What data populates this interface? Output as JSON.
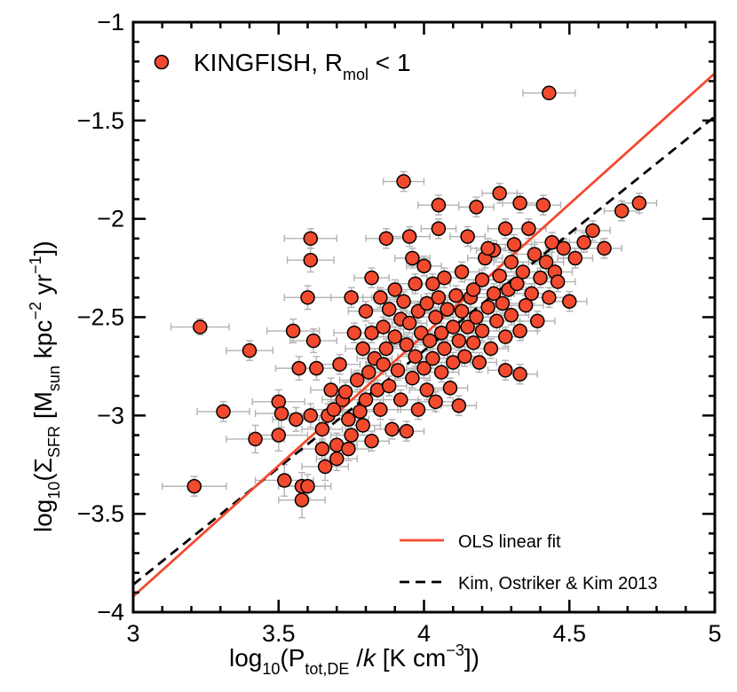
{
  "chart_data": {
    "type": "scatter",
    "xlabel": "log10(P_tot,DE /k [K cm^-3])",
    "ylabel": "log10(Σ_SFR [M_sun kpc^-2 yr^-1])",
    "xlim": [
      3,
      5
    ],
    "ylim": [
      -4,
      -1
    ],
    "x_ticks": [
      "3",
      "3.5",
      "4",
      "4.5",
      "5"
    ],
    "y_ticks": [
      "−1",
      "−1.5",
      "−2",
      "−2.5",
      "−3",
      "−3.5",
      "−4"
    ],
    "x_tick_values": [
      3,
      3.5,
      4,
      4.5,
      5
    ],
    "y_tick_values": [
      -1,
      -1.5,
      -2,
      -2.5,
      -3,
      -3.5,
      -4
    ],
    "label_parts": {
      "x_log": "log",
      "x_log_sub": "10",
      "x_open": "(P",
      "x_sub": "tot,DE",
      "x_slash": " /",
      "x_k": "k",
      "x_units": " [K cm",
      "x_exp": "−3",
      "x_close": "])",
      "y_log": "log",
      "y_log_sub": "10",
      "y_open": "(Σ",
      "y_sub": "SFR",
      "y_units": " [M",
      "y_sun": "sun",
      "y_kpc": " kpc",
      "y_exp1": "−2",
      "y_yr": " yr",
      "y_exp2": "−1",
      "y_close": "])"
    },
    "legend": {
      "points_label": "KINGFISH, R",
      "points_sub": "mol",
      "points_tail": " < 1",
      "ols_label": "OLS linear fit",
      "kok_label": "Kim, Ostriker & Kim 2013"
    },
    "colors": {
      "marker": "#f24a2e",
      "errorbar": "#b3b3b3",
      "ols": "#f24a2e",
      "kok": "#000000"
    },
    "ols_fit": {
      "x": [
        3,
        5
      ],
      "y": [
        -3.92,
        -1.26
      ]
    },
    "kok_fit": {
      "x": [
        3,
        5
      ],
      "y": [
        -3.86,
        -1.48
      ]
    },
    "series": [
      {
        "name": "KINGFISH, Rmol < 1",
        "points": [
          [
            4.43,
            -1.36,
            0.09,
            0.03
          ],
          [
            3.21,
            -3.36,
            0.11,
            0.05
          ],
          [
            3.23,
            -2.55,
            0.1,
            0.04
          ],
          [
            3.31,
            -2.98,
            0.09,
            0.05
          ],
          [
            3.4,
            -2.67,
            0.08,
            0.05
          ],
          [
            3.42,
            -3.12,
            0.1,
            0.07
          ],
          [
            3.5,
            -2.93,
            0.09,
            0.06
          ],
          [
            3.5,
            -3.1,
            0.1,
            0.08
          ],
          [
            3.51,
            -2.99,
            0.09,
            0.07
          ],
          [
            3.52,
            -3.33,
            0.1,
            0.08
          ],
          [
            3.55,
            -2.57,
            0.09,
            0.06
          ],
          [
            3.56,
            -3.02,
            0.08,
            0.06
          ],
          [
            3.57,
            -2.76,
            0.08,
            0.06
          ],
          [
            3.58,
            -3.36,
            0.08,
            0.07
          ],
          [
            3.58,
            -3.43,
            0.08,
            0.09
          ],
          [
            3.6,
            -2.4,
            0.08,
            0.06
          ],
          [
            3.6,
            -3.36,
            0.08,
            0.06
          ],
          [
            3.61,
            -2.1,
            0.09,
            0.05
          ],
          [
            3.61,
            -2.21,
            0.08,
            0.06
          ],
          [
            3.61,
            -3.0,
            0.08,
            0.06
          ],
          [
            3.62,
            -2.62,
            0.08,
            0.06
          ],
          [
            3.63,
            -2.76,
            0.07,
            0.06
          ],
          [
            3.65,
            -3.07,
            0.07,
            0.06
          ],
          [
            3.65,
            -3.17,
            0.07,
            0.05
          ],
          [
            3.66,
            -3.26,
            0.08,
            0.07
          ],
          [
            3.67,
            -3.0,
            0.07,
            0.06
          ],
          [
            3.68,
            -2.87,
            0.07,
            0.06
          ],
          [
            3.69,
            -2.97,
            0.07,
            0.05
          ],
          [
            3.7,
            -3.15,
            0.07,
            0.06
          ],
          [
            3.7,
            -3.22,
            0.07,
            0.06
          ],
          [
            3.71,
            -2.74,
            0.07,
            0.05
          ],
          [
            3.72,
            -2.92,
            0.07,
            0.06
          ],
          [
            3.73,
            -2.88,
            0.07,
            0.05
          ],
          [
            3.74,
            -3.02,
            0.07,
            0.05
          ],
          [
            3.74,
            -3.17,
            0.07,
            0.06
          ],
          [
            3.75,
            -2.4,
            0.07,
            0.05
          ],
          [
            3.75,
            -3.1,
            0.07,
            0.05
          ],
          [
            3.76,
            -2.58,
            0.07,
            0.05
          ],
          [
            3.77,
            -2.82,
            0.06,
            0.05
          ],
          [
            3.78,
            -2.98,
            0.06,
            0.05
          ],
          [
            3.79,
            -2.66,
            0.06,
            0.05
          ],
          [
            3.79,
            -3.05,
            0.06,
            0.05
          ],
          [
            3.8,
            -2.47,
            0.06,
            0.05
          ],
          [
            3.8,
            -2.92,
            0.06,
            0.05
          ],
          [
            3.81,
            -2.78,
            0.06,
            0.05
          ],
          [
            3.82,
            -2.58,
            0.06,
            0.05
          ],
          [
            3.82,
            -3.13,
            0.06,
            0.05
          ],
          [
            3.83,
            -2.71,
            0.06,
            0.05
          ],
          [
            3.84,
            -2.87,
            0.06,
            0.05
          ],
          [
            3.85,
            -2.4,
            0.06,
            0.05
          ],
          [
            3.85,
            -2.97,
            0.06,
            0.05
          ],
          [
            3.86,
            -2.55,
            0.06,
            0.05
          ],
          [
            3.86,
            -2.74,
            0.06,
            0.05
          ],
          [
            3.87,
            -2.1,
            0.07,
            0.05
          ],
          [
            3.87,
            -2.66,
            0.06,
            0.05
          ],
          [
            3.88,
            -2.46,
            0.06,
            0.05
          ],
          [
            3.88,
            -2.85,
            0.06,
            0.05
          ],
          [
            3.89,
            -3.07,
            0.06,
            0.05
          ],
          [
            3.9,
            -2.36,
            0.06,
            0.05
          ],
          [
            3.9,
            -2.6,
            0.06,
            0.05
          ],
          [
            3.91,
            -2.77,
            0.06,
            0.05
          ],
          [
            3.92,
            -2.51,
            0.06,
            0.05
          ],
          [
            3.92,
            -2.92,
            0.06,
            0.05
          ],
          [
            3.93,
            -1.81,
            0.07,
            0.05
          ],
          [
            3.93,
            -2.42,
            0.06,
            0.05
          ],
          [
            3.94,
            -2.64,
            0.06,
            0.05
          ],
          [
            3.94,
            -3.08,
            0.06,
            0.05
          ],
          [
            3.95,
            -2.09,
            0.07,
            0.05
          ],
          [
            3.95,
            -2.53,
            0.06,
            0.05
          ],
          [
            3.96,
            -2.81,
            0.06,
            0.05
          ],
          [
            3.97,
            -2.33,
            0.06,
            0.05
          ],
          [
            3.97,
            -2.7,
            0.06,
            0.05
          ],
          [
            3.98,
            -2.47,
            0.06,
            0.05
          ],
          [
            3.98,
            -2.97,
            0.06,
            0.05
          ],
          [
            3.99,
            -2.58,
            0.06,
            0.05
          ],
          [
            4.0,
            -2.24,
            0.06,
            0.05
          ],
          [
            4.0,
            -2.76,
            0.06,
            0.05
          ],
          [
            4.01,
            -2.43,
            0.06,
            0.05
          ],
          [
            4.01,
            -2.87,
            0.06,
            0.05
          ],
          [
            4.02,
            -2.62,
            0.06,
            0.05
          ],
          [
            4.03,
            -2.33,
            0.06,
            0.05
          ],
          [
            4.03,
            -2.71,
            0.06,
            0.05
          ],
          [
            4.04,
            -2.5,
            0.06,
            0.05
          ],
          [
            4.04,
            -2.93,
            0.06,
            0.05
          ],
          [
            4.05,
            -1.93,
            0.07,
            0.05
          ],
          [
            4.05,
            -2.4,
            0.06,
            0.05
          ],
          [
            4.06,
            -2.58,
            0.06,
            0.05
          ],
          [
            4.06,
            -2.78,
            0.06,
            0.05
          ],
          [
            4.07,
            -2.3,
            0.06,
            0.05
          ],
          [
            4.07,
            -2.66,
            0.06,
            0.05
          ],
          [
            4.08,
            -2.46,
            0.06,
            0.05
          ],
          [
            4.09,
            -2.86,
            0.06,
            0.05
          ],
          [
            4.1,
            -2.55,
            0.06,
            0.05
          ],
          [
            4.1,
            -2.73,
            0.06,
            0.05
          ],
          [
            4.11,
            -2.39,
            0.06,
            0.05
          ],
          [
            4.12,
            -2.62,
            0.06,
            0.05
          ],
          [
            4.13,
            -2.27,
            0.06,
            0.05
          ],
          [
            4.13,
            -2.47,
            0.06,
            0.05
          ],
          [
            4.14,
            -2.7,
            0.06,
            0.05
          ],
          [
            4.15,
            -2.09,
            0.06,
            0.05
          ],
          [
            4.15,
            -2.55,
            0.06,
            0.05
          ],
          [
            4.16,
            -2.4,
            0.06,
            0.05
          ],
          [
            4.17,
            -2.36,
            0.06,
            0.05
          ],
          [
            4.17,
            -2.63,
            0.06,
            0.05
          ],
          [
            4.18,
            -1.94,
            0.06,
            0.05
          ],
          [
            4.18,
            -2.5,
            0.06,
            0.05
          ],
          [
            4.19,
            -2.73,
            0.06,
            0.05
          ],
          [
            4.2,
            -2.31,
            0.06,
            0.05
          ],
          [
            4.2,
            -2.57,
            0.06,
            0.05
          ],
          [
            4.21,
            -2.2,
            0.06,
            0.05
          ],
          [
            4.22,
            -2.45,
            0.06,
            0.05
          ],
          [
            4.23,
            -2.66,
            0.06,
            0.05
          ],
          [
            4.24,
            -2.16,
            0.06,
            0.05
          ],
          [
            4.24,
            -2.38,
            0.06,
            0.05
          ],
          [
            4.25,
            -2.52,
            0.06,
            0.05
          ],
          [
            4.26,
            -1.87,
            0.06,
            0.05
          ],
          [
            4.26,
            -2.29,
            0.06,
            0.05
          ],
          [
            4.27,
            -2.43,
            0.06,
            0.05
          ],
          [
            4.28,
            -2.05,
            0.06,
            0.05
          ],
          [
            4.28,
            -2.6,
            0.06,
            0.05
          ],
          [
            4.29,
            -2.36,
            0.06,
            0.05
          ],
          [
            4.3,
            -2.22,
            0.06,
            0.05
          ],
          [
            4.3,
            -2.49,
            0.06,
            0.05
          ],
          [
            4.31,
            -2.13,
            0.06,
            0.05
          ],
          [
            4.32,
            -2.33,
            0.06,
            0.05
          ],
          [
            4.33,
            -1.92,
            0.06,
            0.05
          ],
          [
            4.33,
            -2.57,
            0.06,
            0.05
          ],
          [
            4.34,
            -2.27,
            0.06,
            0.05
          ],
          [
            4.35,
            -2.44,
            0.06,
            0.05
          ],
          [
            4.36,
            -2.05,
            0.06,
            0.05
          ],
          [
            4.37,
            -2.38,
            0.06,
            0.05
          ],
          [
            4.38,
            -2.18,
            0.06,
            0.05
          ],
          [
            4.39,
            -2.52,
            0.06,
            0.05
          ],
          [
            4.4,
            -2.3,
            0.06,
            0.05
          ],
          [
            4.41,
            -1.93,
            0.06,
            0.05
          ],
          [
            4.42,
            -2.22,
            0.06,
            0.05
          ],
          [
            4.43,
            -2.4,
            0.06,
            0.05
          ],
          [
            4.44,
            -2.12,
            0.06,
            0.05
          ],
          [
            4.45,
            -2.27,
            0.06,
            0.05
          ],
          [
            4.46,
            -2.32,
            0.06,
            0.05
          ],
          [
            4.48,
            -2.15,
            0.06,
            0.05
          ],
          [
            4.5,
            -2.42,
            0.06,
            0.05
          ],
          [
            4.52,
            -2.2,
            0.06,
            0.05
          ],
          [
            4.55,
            -2.12,
            0.06,
            0.05
          ],
          [
            4.58,
            -2.06,
            0.06,
            0.05
          ],
          [
            4.62,
            -2.15,
            0.06,
            0.05
          ],
          [
            4.68,
            -1.96,
            0.06,
            0.05
          ],
          [
            4.74,
            -1.92,
            0.06,
            0.05
          ],
          [
            4.33,
            -2.79,
            0.06,
            0.05
          ],
          [
            4.28,
            -2.77,
            0.06,
            0.05
          ],
          [
            4.05,
            -2.05,
            0.06,
            0.05
          ],
          [
            3.96,
            -2.2,
            0.06,
            0.05
          ],
          [
            4.12,
            -2.95,
            0.06,
            0.05
          ],
          [
            3.82,
            -2.3,
            0.06,
            0.05
          ],
          [
            4.22,
            -2.15,
            0.06,
            0.05
          ]
        ]
      }
    ]
  }
}
